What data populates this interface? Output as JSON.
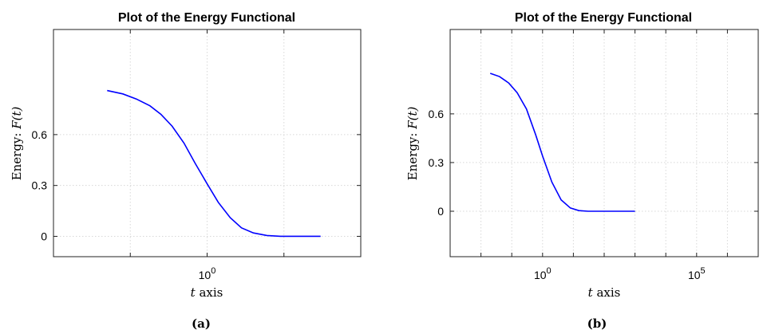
{
  "chart_data": [
    {
      "type": "line",
      "title": "Plot of the Energy Functional",
      "xlabel_var": "t",
      "xlabel_rest": " axis",
      "ylabel_text": "Energy: ",
      "ylabel_math": "F(t)",
      "x_scale": "log",
      "xlim": [
        0.01,
        100
      ],
      "ylim": [
        -0.12,
        1.22
      ],
      "y_ticks": [
        0,
        0.3,
        0.6
      ],
      "y_tick_labels": [
        "0",
        "0.3",
        "0.6"
      ],
      "x_tick_labels": [
        {
          "base": "10",
          "exp": "0",
          "value": 1
        }
      ],
      "grid": true,
      "caption": "(a)",
      "series": [
        {
          "color": "#0000ff",
          "x": [
            0.05,
            0.08,
            0.12,
            0.18,
            0.25,
            0.35,
            0.5,
            0.7,
            1.0,
            1.4,
            2.0,
            2.8,
            4.0,
            6.0,
            9.0,
            14.0,
            20.0,
            30.0
          ],
          "y": [
            0.86,
            0.84,
            0.81,
            0.77,
            0.72,
            0.65,
            0.55,
            0.43,
            0.31,
            0.2,
            0.11,
            0.05,
            0.02,
            0.005,
            0.0,
            0.0,
            0.0,
            0.0
          ]
        }
      ]
    },
    {
      "type": "line",
      "title": "Plot of the Energy Functional",
      "xlabel_var": "t",
      "xlabel_rest": " axis",
      "ylabel_text": "Energy: ",
      "ylabel_math": "F(t)",
      "x_scale": "log",
      "xlim": [
        0.001,
        10000000
      ],
      "ylim": [
        -0.28,
        1.12
      ],
      "y_ticks": [
        0,
        0.3,
        0.6
      ],
      "y_tick_labels": [
        "0",
        "0.3",
        "0.6"
      ],
      "x_tick_labels": [
        {
          "base": "10",
          "exp": "0",
          "value": 1
        },
        {
          "base": "10",
          "exp": "5",
          "value": 100000
        }
      ],
      "grid": true,
      "caption": "(b)",
      "series": [
        {
          "color": "#0000ff",
          "x": [
            0.02,
            0.04,
            0.08,
            0.15,
            0.3,
            0.6,
            1.0,
            2.0,
            4.0,
            8.0,
            15.0,
            30.0,
            60.0,
            120.0,
            250.0,
            500.0,
            1000.0
          ],
          "y": [
            0.85,
            0.83,
            0.79,
            0.73,
            0.63,
            0.47,
            0.34,
            0.18,
            0.07,
            0.02,
            0.004,
            0.0,
            0.0,
            0.0,
            0.0,
            0.0,
            0.0
          ]
        }
      ]
    }
  ]
}
